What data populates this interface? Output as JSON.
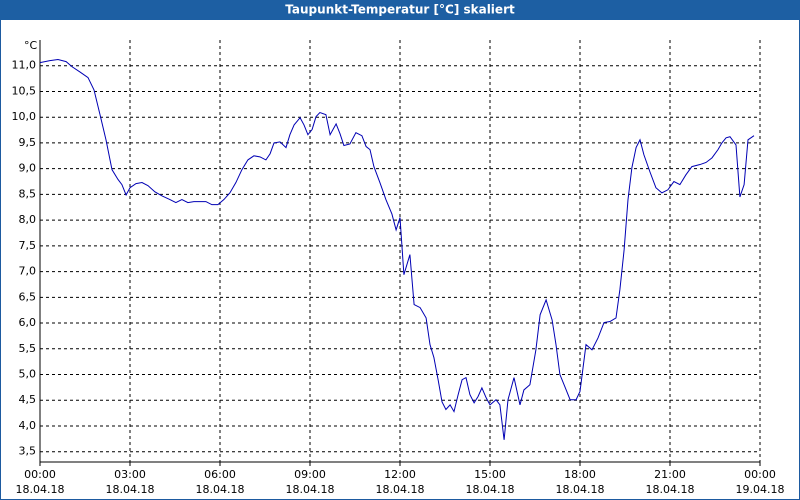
{
  "chart_data": {
    "type": "line",
    "title": "Taupunkt-Temperatur [°C] skaliert",
    "y_unit": "°C",
    "x": [
      0,
      0.33,
      0.6,
      0.87,
      1.07,
      1.33,
      1.6,
      1.8,
      2,
      2.2,
      2.4,
      2.6,
      2.73,
      2.87,
      3,
      3.2,
      3.4,
      3.6,
      3.83,
      4.07,
      4.33,
      4.53,
      4.73,
      4.93,
      5.13,
      5.33,
      5.53,
      5.73,
      5.93,
      6.13,
      6.33,
      6.53,
      6.73,
      6.93,
      7.13,
      7.33,
      7.53,
      7.67,
      7.8,
      8,
      8.2,
      8.33,
      8.47,
      8.67,
      8.8,
      8.93,
      9.07,
      9.2,
      9.33,
      9.53,
      9.67,
      9.87,
      10,
      10.13,
      10.33,
      10.53,
      10.73,
      10.87,
      11,
      11.13,
      11.33,
      11.53,
      11.73,
      11.87,
      12,
      12.13,
      12.33,
      12.47,
      12.67,
      12.87,
      13,
      13.13,
      13.27,
      13.4,
      13.53,
      13.67,
      13.8,
      13.93,
      14.07,
      14.2,
      14.33,
      14.47,
      14.6,
      14.73,
      14.87,
      15,
      15.2,
      15.33,
      15.47,
      15.6,
      15.8,
      16,
      16.13,
      16.33,
      16.53,
      16.67,
      16.87,
      17.07,
      17.2,
      17.33,
      17.47,
      17.67,
      17.87,
      18,
      18.2,
      18.4,
      18.6,
      18.8,
      19,
      19.2,
      19.33,
      19.47,
      19.6,
      19.73,
      19.87,
      20,
      20.13,
      20.33,
      20.53,
      20.73,
      20.93,
      21.13,
      21.33,
      21.53,
      21.73,
      22,
      22.2,
      22.4,
      22.6,
      22.73,
      22.87,
      23,
      23.2,
      23.33,
      23.47,
      23.6,
      23.8
    ],
    "series": [
      {
        "color": "#0000b4",
        "values": [
          11.06,
          11.1,
          11.12,
          11.08,
          10.98,
          10.88,
          10.77,
          10.53,
          10.05,
          9.56,
          8.98,
          8.79,
          8.69,
          8.49,
          8.63,
          8.71,
          8.73,
          8.67,
          8.55,
          8.47,
          8.4,
          8.34,
          8.4,
          8.34,
          8.36,
          8.36,
          8.36,
          8.3,
          8.3,
          8.4,
          8.53,
          8.73,
          8.98,
          9.17,
          9.25,
          9.23,
          9.17,
          9.29,
          9.5,
          9.52,
          9.41,
          9.66,
          9.85,
          9.99,
          9.85,
          9.66,
          9.76,
          10.01,
          10.09,
          10.05,
          9.66,
          9.87,
          9.68,
          9.45,
          9.48,
          9.7,
          9.64,
          9.43,
          9.37,
          9.04,
          8.73,
          8.4,
          8.12,
          7.81,
          8.05,
          6.94,
          7.33,
          6.36,
          6.3,
          6.1,
          5.58,
          5.33,
          4.9,
          4.47,
          4.32,
          4.41,
          4.28,
          4.59,
          4.9,
          4.94,
          4.61,
          4.45,
          4.57,
          4.74,
          4.55,
          4.41,
          4.51,
          4.41,
          3.73,
          4.51,
          4.94,
          4.41,
          4.7,
          4.8,
          5.48,
          6.16,
          6.45,
          6.06,
          5.58,
          5,
          4.8,
          4.51,
          4.51,
          4.67,
          5.58,
          5.48,
          5.71,
          6.01,
          6.03,
          6.1,
          6.65,
          7.42,
          8.4,
          9.02,
          9.41,
          9.56,
          9.27,
          8.94,
          8.63,
          8.53,
          8.59,
          8.75,
          8.69,
          8.88,
          9.04,
          9.08,
          9.12,
          9.21,
          9.37,
          9.5,
          9.6,
          9.62,
          9.46,
          8.45,
          8.69,
          9.56,
          9.64
        ]
      }
    ],
    "xlim": [
      0,
      24
    ],
    "xticks": [
      {
        "value": 0,
        "label": "00:00"
      },
      {
        "value": 3,
        "label": "03:00"
      },
      {
        "value": 6,
        "label": "06:00"
      },
      {
        "value": 9,
        "label": "09:00"
      },
      {
        "value": 12,
        "label": "12:00"
      },
      {
        "value": 15,
        "label": "15:00"
      },
      {
        "value": 18,
        "label": "18:00"
      },
      {
        "value": 21,
        "label": "21:00"
      },
      {
        "value": 24,
        "label": "00:00"
      }
    ],
    "xtick_dates": [
      "18.04.18",
      "18.04.18",
      "18.04.18",
      "18.04.18",
      "18.04.18",
      "18.04.18",
      "18.04.18",
      "18.04.18",
      "19.04.18"
    ],
    "ylim": [
      3.3,
      11.5
    ],
    "yticks": [
      {
        "value": 3.5,
        "label": "3,5"
      },
      {
        "value": 4,
        "label": "4,0"
      },
      {
        "value": 4.5,
        "label": "4,5"
      },
      {
        "value": 5,
        "label": "5,0"
      },
      {
        "value": 5.5,
        "label": "5,5"
      },
      {
        "value": 6,
        "label": "6,0"
      },
      {
        "value": 6.5,
        "label": "6,5"
      },
      {
        "value": 7,
        "label": "7,0"
      },
      {
        "value": 7.5,
        "label": "7,5"
      },
      {
        "value": 8,
        "label": "8,0"
      },
      {
        "value": 8.5,
        "label": "8,5"
      },
      {
        "value": 9,
        "label": "9,0"
      },
      {
        "value": 9.5,
        "label": "9,5"
      },
      {
        "value": 10,
        "label": "10,0"
      },
      {
        "value": 10.5,
        "label": "10,5"
      },
      {
        "value": 11,
        "label": "11,0"
      }
    ],
    "grid": true
  }
}
